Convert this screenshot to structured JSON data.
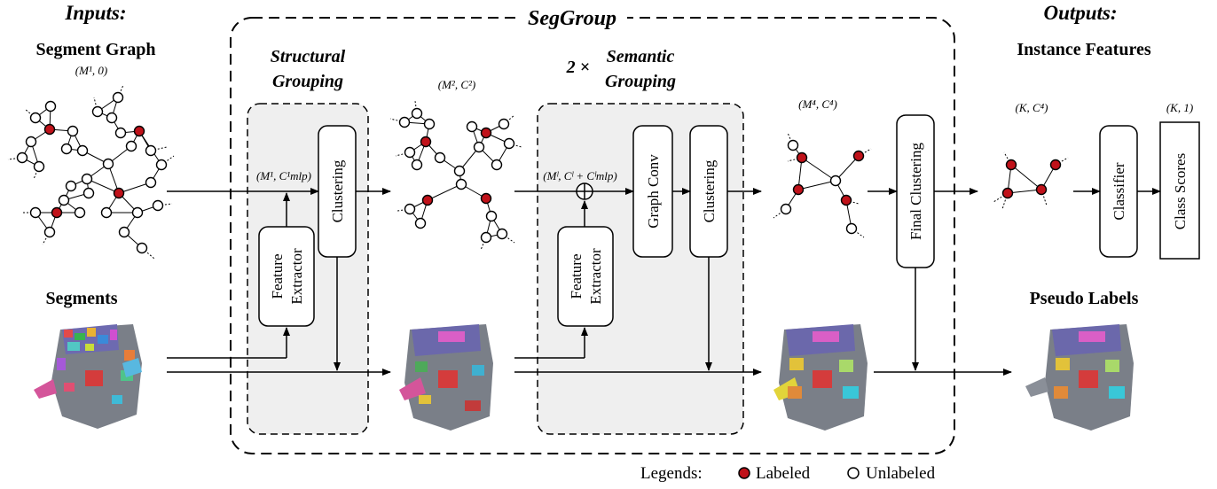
{
  "inputs_title": "Inputs:",
  "outputs_title": "Outputs:",
  "seggroup_title": "SegGroup",
  "segment_graph_label": "Segment Graph",
  "segments_label": "Segments",
  "structural_title_line1": "Structural",
  "structural_title_line2": "Grouping",
  "semantic_prefix": "2 ×",
  "semantic_title_line1": "Semantic",
  "semantic_title_line2": "Grouping",
  "instance_features_label": "Instance Features",
  "pseudo_labels_label": "Pseudo Labels",
  "boxes": {
    "feature_extractor_line1": "Feature",
    "feature_extractor_line2": "Extractor",
    "clustering": "Clustering",
    "graph_conv": "Graph Conv",
    "final_clustering": "Final Clustering",
    "classifier": "Classifier",
    "class_scores": "Class Scores"
  },
  "math": {
    "m1_0": "(M¹, 0)",
    "m1_cmlp": "(M¹, C¹mlp)",
    "m2_c2": "(M², C²)",
    "ml_cl": "(Mˡ, Cˡ + Cˡmlp)",
    "m4_c4": "(M⁴, C⁴)",
    "k_c4": "(K, C⁴)",
    "k_1": "(K, 1)"
  },
  "legend": {
    "title": "Legends:",
    "labeled": "Labeled",
    "unlabeled": "Unlabeled"
  },
  "colors": {
    "labeled_node": "#c0121a",
    "unlabeled_node": "#ffffff",
    "module_fill": "#efefef"
  }
}
